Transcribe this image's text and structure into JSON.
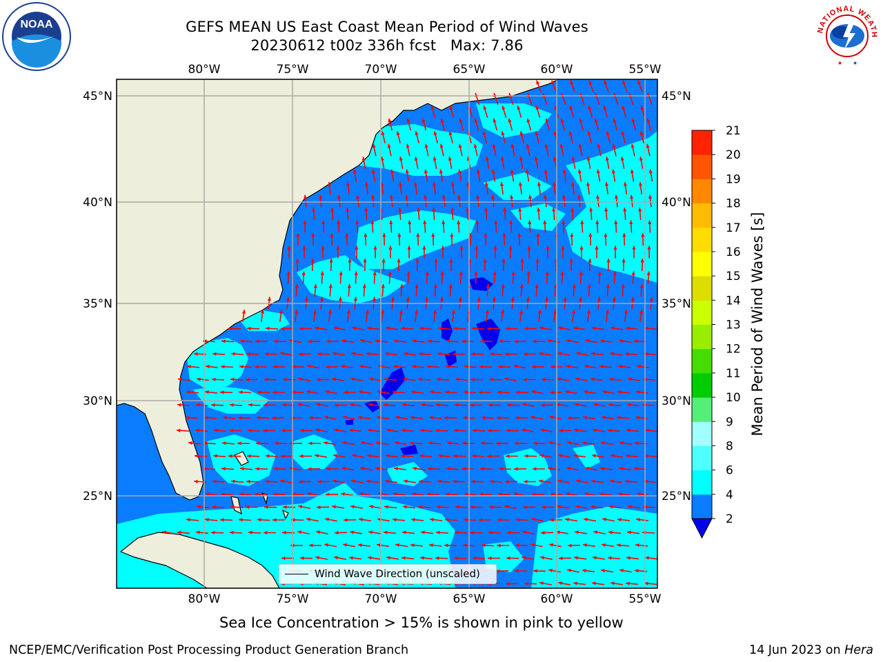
{
  "header": {
    "title_line1": "GEFS MEAN US East Coast Mean Period of Wind Waves",
    "title_line2": "20230612 t00z 336h fcst   Max: 7.86"
  },
  "logos": {
    "left": "noaa-logo",
    "left_ring_text": "NATIONAL OCEANIC AND ATMOSPHERIC ADMINISTRATION · U.S. DEPARTMENT OF COMMERCE",
    "left_center_text": "NOAA",
    "right": "national-weather-service-logo",
    "right_ring_text": "NATIONAL WEATHER SERVICE"
  },
  "map": {
    "lon_ticks": [
      "80°W",
      "75°W",
      "70°W",
      "65°W",
      "60°W",
      "55°W"
    ],
    "lat_ticks": [
      "45°N",
      "40°N",
      "35°N",
      "30°N",
      "25°N"
    ],
    "extent": {
      "lon_min": -85,
      "lon_max": -54.3,
      "lat_min": 20.5,
      "lat_max": 46
    },
    "gridlines": true,
    "colors": {
      "land": "#eeeedc",
      "ocean_2_4": "#0a7cff",
      "ocean_4_6": "#00ffff",
      "ocean_lt_2": "#0000ee",
      "arrows": "#ff0000",
      "grid": "#aaaaaa",
      "coast": "#000000"
    },
    "arrow_direction_summary": "northern area arrows point north-northwest; southern area arrows point west"
  },
  "legend": {
    "label": "Wind Wave Direction (unscaled)"
  },
  "colorbar": {
    "title": "Mean Period of Wind Waves [s]",
    "tick_labels": [
      "2",
      "4",
      "6",
      "8",
      "9",
      "10",
      "11",
      "12",
      "13",
      "14",
      "15",
      "16",
      "17",
      "18",
      "19",
      "20",
      "21"
    ],
    "extend": "min",
    "colors": [
      "#0a7cff",
      "#00ffff",
      "#4dffff",
      "#a0ffff",
      "#55ee77",
      "#00cc00",
      "#44dd00",
      "#99ee00",
      "#ccff00",
      "#dddd00",
      "#ffff00",
      "#ffdd00",
      "#ffbb00",
      "#ff8800",
      "#ff5500",
      "#ff2200"
    ],
    "under_color": "#0000ee"
  },
  "notes": {
    "sea_ice": "Sea Ice Concentration > 15% is shown in pink to yellow"
  },
  "footer": {
    "left": "NCEP/EMC/Verification Post Processing Product Generation Branch",
    "right_date": "14 Jun 2023 on ",
    "right_host": "Hera"
  }
}
